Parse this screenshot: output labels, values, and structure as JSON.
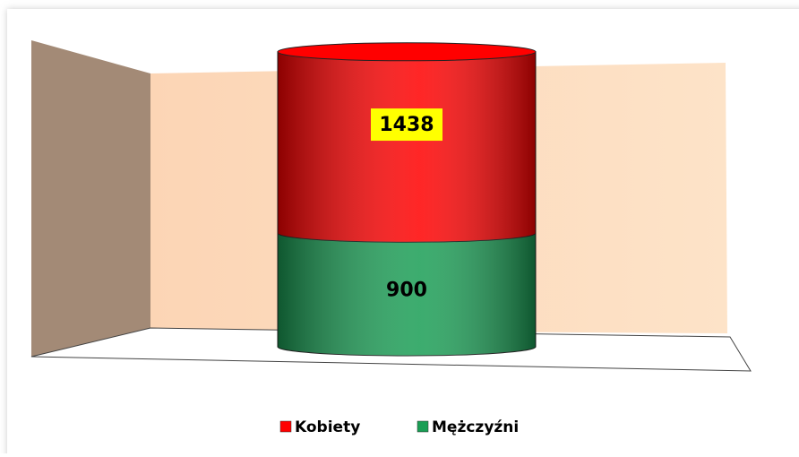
{
  "chart_data": {
    "type": "bar",
    "stacked": true,
    "categories": [
      null
    ],
    "series": [
      {
        "name": "Mężczyźni",
        "color": "#1a9e55",
        "values": [
          900
        ]
      },
      {
        "name": "Kobiety",
        "color": "#ff0000",
        "values": [
          1438
        ]
      }
    ],
    "legend": "bottom"
  }
}
